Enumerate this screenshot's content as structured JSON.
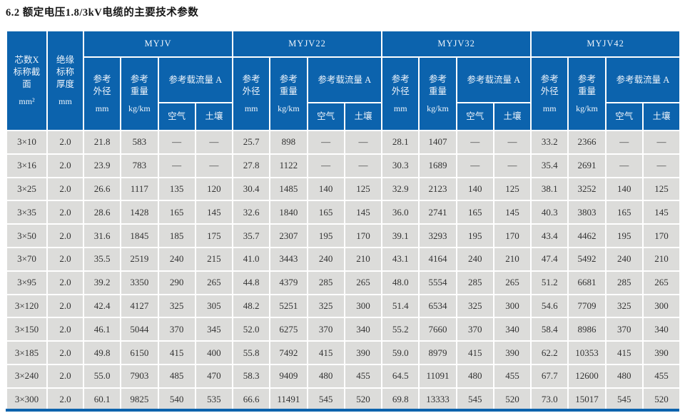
{
  "page": {
    "title": "6.2 额定电压1.8/3kV电缆的主要技术参数"
  },
  "colors": {
    "header_bg": "#0c63ad",
    "header_text": "#eef4fb",
    "row_bg": "#dcdcda",
    "cell_text": "#333333",
    "grid": "#ffffff"
  },
  "table": {
    "col1": {
      "label": "芯数X\n标称截\n面",
      "unit": "mm²"
    },
    "col2": {
      "label": "绝缘\n标称\n厚度",
      "unit": "mm"
    },
    "groups": [
      "MYJV",
      "MYJV22",
      "MYJV32",
      "MYJV42"
    ],
    "sub": {
      "od_label": "参考\n外径",
      "od_unit": "mm",
      "weight_label": "参考\n重量",
      "weight_unit": "kg/km",
      "ampacity_label": "参考载流量 A",
      "air_label": "空气",
      "soil_label": "土壤"
    },
    "rows": [
      [
        "3×10",
        "2.0",
        "21.8",
        "583",
        "—",
        "—",
        "25.7",
        "898",
        "—",
        "—",
        "28.1",
        "1407",
        "—",
        "—",
        "33.2",
        "2366",
        "—",
        "—"
      ],
      [
        "3×16",
        "2.0",
        "23.9",
        "783",
        "—",
        "—",
        "27.8",
        "1122",
        "—",
        "—",
        "30.3",
        "1689",
        "—",
        "—",
        "35.4",
        "2691",
        "—",
        "—"
      ],
      [
        "3×25",
        "2.0",
        "26.6",
        "1117",
        "135",
        "120",
        "30.4",
        "1485",
        "140",
        "125",
        "32.9",
        "2123",
        "140",
        "125",
        "38.1",
        "3252",
        "140",
        "125"
      ],
      [
        "3×35",
        "2.0",
        "28.6",
        "1428",
        "165",
        "145",
        "32.6",
        "1840",
        "165",
        "145",
        "36.0",
        "2741",
        "165",
        "145",
        "40.3",
        "3803",
        "165",
        "145"
      ],
      [
        "3×50",
        "2.0",
        "31.6",
        "1845",
        "185",
        "175",
        "35.7",
        "2307",
        "195",
        "170",
        "39.1",
        "3293",
        "195",
        "170",
        "43.4",
        "4462",
        "195",
        "170"
      ],
      [
        "3×70",
        "2.0",
        "35.5",
        "2519",
        "240",
        "215",
        "41.0",
        "3443",
        "240",
        "210",
        "43.1",
        "4164",
        "240",
        "210",
        "47.4",
        "5492",
        "240",
        "210"
      ],
      [
        "3×95",
        "2.0",
        "39.2",
        "3350",
        "290",
        "265",
        "44.8",
        "4379",
        "285",
        "265",
        "48.0",
        "5554",
        "285",
        "265",
        "51.2",
        "6681",
        "285",
        "265"
      ],
      [
        "3×120",
        "2.0",
        "42.4",
        "4127",
        "325",
        "305",
        "48.2",
        "5251",
        "325",
        "300",
        "51.4",
        "6534",
        "325",
        "300",
        "54.6",
        "7709",
        "325",
        "300"
      ],
      [
        "3×150",
        "2.0",
        "46.1",
        "5044",
        "370",
        "345",
        "52.0",
        "6275",
        "370",
        "340",
        "55.2",
        "7660",
        "370",
        "340",
        "58.4",
        "8986",
        "370",
        "340"
      ],
      [
        "3×185",
        "2.0",
        "49.8",
        "6150",
        "415",
        "400",
        "55.8",
        "7492",
        "415",
        "390",
        "59.0",
        "8979",
        "415",
        "390",
        "62.2",
        "10353",
        "415",
        "390"
      ],
      [
        "3×240",
        "2.0",
        "55.0",
        "7903",
        "485",
        "470",
        "58.3",
        "9409",
        "480",
        "455",
        "64.5",
        "11091",
        "480",
        "455",
        "67.7",
        "12600",
        "480",
        "455"
      ],
      [
        "3×300",
        "2.0",
        "60.1",
        "9825",
        "540",
        "535",
        "66.6",
        "11491",
        "545",
        "520",
        "69.8",
        "13333",
        "545",
        "520",
        "73.0",
        "15017",
        "545",
        "520"
      ]
    ]
  }
}
